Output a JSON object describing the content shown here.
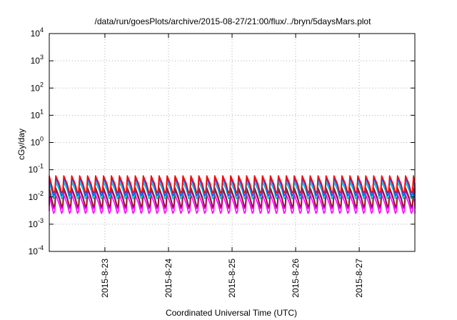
{
  "chart_data": {
    "type": "line",
    "title": "/data/run/goesPlots/archive/2015-08-27/21:00/flux/../bryn/5daysMars.plot",
    "xlabel": "Coordinated Universal Time (UTC)",
    "ylabel": "cGy/day",
    "yscale": "log",
    "ylim": [
      0.0001,
      10000
    ],
    "xlim": [
      "2015-08-22 03:00",
      "2015-08-27 21:00"
    ],
    "grid": true,
    "y_ticks": [
      {
        "base": "10",
        "exp": "-4"
      },
      {
        "base": "10",
        "exp": "-3"
      },
      {
        "base": "10",
        "exp": "-2"
      },
      {
        "base": "10",
        "exp": "-1"
      },
      {
        "base": "10",
        "exp": "0"
      },
      {
        "base": "10",
        "exp": "1"
      },
      {
        "base": "10",
        "exp": "2"
      },
      {
        "base": "10",
        "exp": "3"
      },
      {
        "base": "10",
        "exp": "4"
      }
    ],
    "x_ticks": [
      "2015-8-23",
      "2015-8-24",
      "2015-8-25",
      "2015-8-26",
      "2015-8-27"
    ],
    "oscillation_period_hours": 3,
    "series": [
      {
        "color": "#ff00ff",
        "peak": 0.012,
        "trough": 0.0025
      },
      {
        "color": "#cc00cc",
        "peak": 0.018,
        "trough": 0.0038
      },
      {
        "color": "#8b1a1a",
        "peak": 0.022,
        "trough": 0.0045
      },
      {
        "color": "#00c8c8",
        "peak": 0.035,
        "trough": 0.0085
      },
      {
        "color": "#1e50ff",
        "peak": 0.048,
        "trough": 0.011
      },
      {
        "color": "#ff0000",
        "peak": 0.06,
        "trough": 0.014
      }
    ]
  }
}
